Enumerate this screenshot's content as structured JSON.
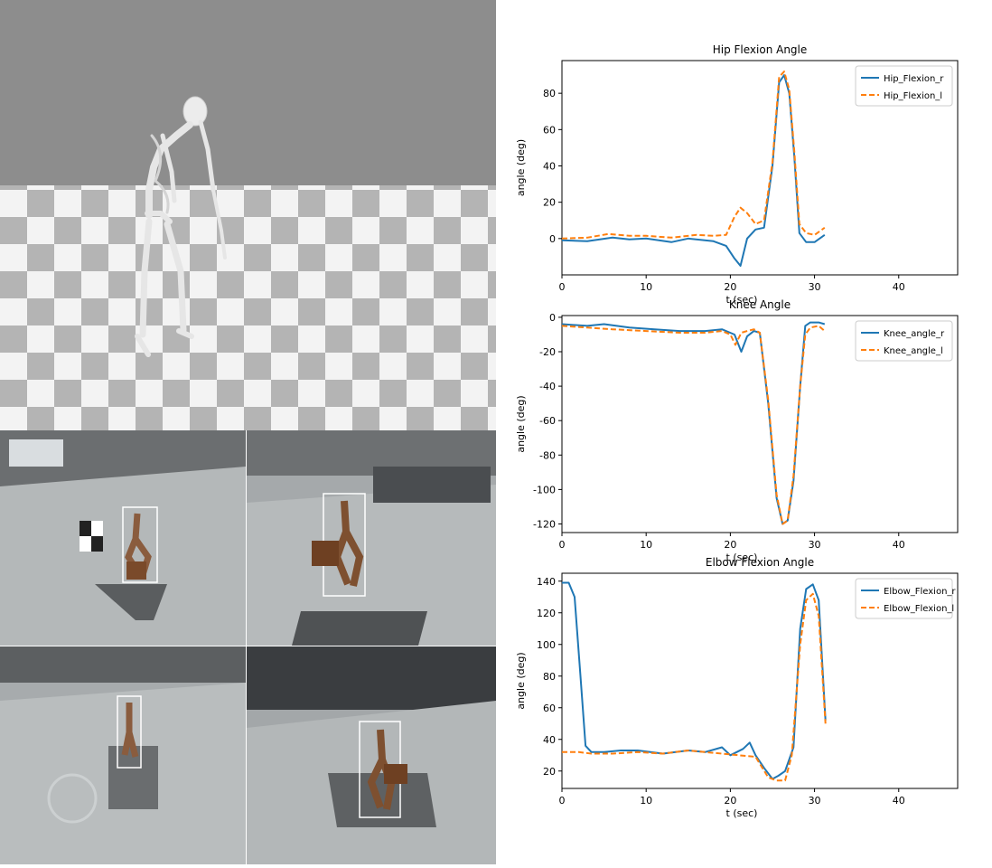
{
  "chart_data": [
    {
      "type": "line",
      "title": "Hip Flexion Angle",
      "xlabel": "t (sec)",
      "ylabel": "angle (deg)",
      "xlim": [
        0,
        47
      ],
      "ylim": [
        -20,
        98
      ],
      "xticks": [
        0,
        10,
        20,
        30,
        40
      ],
      "yticks": [
        0,
        20,
        40,
        60,
        80
      ],
      "legend": "top-right",
      "series": [
        {
          "name": "Hip_Flexion_r",
          "color": "#1f77b4",
          "dash": false,
          "x": [
            0,
            3,
            6,
            8,
            10,
            13,
            15,
            18,
            19.5,
            20.5,
            21.2,
            22,
            23,
            24,
            25,
            25.8,
            26.4,
            27,
            27.6,
            28.2,
            29,
            30,
            31.2
          ],
          "y": [
            -1,
            -1.5,
            0.5,
            -0.5,
            0,
            -2,
            0,
            -1.5,
            -4,
            -11,
            -15,
            0,
            5,
            6,
            40,
            86,
            90,
            80,
            45,
            3,
            -2,
            -2,
            2
          ]
        },
        {
          "name": "Hip_Flexion_l",
          "color": "#ff7f0e",
          "dash": true,
          "x": [
            0,
            3,
            5.5,
            8,
            10,
            13,
            16,
            18,
            19.5,
            20.5,
            21.2,
            22,
            23,
            24,
            25,
            25.8,
            26.4,
            27,
            27.6,
            28.2,
            29,
            30,
            31.2
          ],
          "y": [
            0,
            0.5,
            2.5,
            1.5,
            1.5,
            0.5,
            2,
            1.5,
            2,
            12,
            17,
            14,
            8,
            10,
            42,
            89,
            92,
            82,
            48,
            8,
            3,
            2,
            6
          ]
        }
      ]
    },
    {
      "type": "line",
      "title": "Knee Angle",
      "xlabel": "t (sec)",
      "ylabel": "angle (deg)",
      "xlim": [
        0,
        47
      ],
      "ylim": [
        -125,
        1
      ],
      "xticks": [
        0,
        10,
        20,
        30,
        40
      ],
      "yticks": [
        0,
        -20,
        -40,
        -60,
        -80,
        -100,
        -120
      ],
      "legend": "top-right",
      "series": [
        {
          "name": "Knee_angle_r",
          "color": "#1f77b4",
          "dash": false,
          "x": [
            0,
            3,
            5,
            8,
            11,
            14,
            17,
            19,
            20.5,
            21.3,
            22,
            22.8,
            23.5,
            24.5,
            25.5,
            26.2,
            26.8,
            27.5,
            28.3,
            28.9,
            29.5,
            30.5,
            31.2
          ],
          "y": [
            -4,
            -5,
            -4,
            -6,
            -7,
            -8,
            -8,
            -7,
            -10,
            -20,
            -11,
            -8,
            -9,
            -50,
            -105,
            -120,
            -118,
            -95,
            -40,
            -5,
            -3,
            -3,
            -4
          ]
        },
        {
          "name": "Knee_angle_l",
          "color": "#ff7f0e",
          "dash": true,
          "x": [
            0,
            3,
            6,
            10,
            14,
            17,
            19,
            20,
            20.6,
            21.3,
            22,
            22.8,
            23.5,
            24.5,
            25.5,
            26.2,
            26.8,
            27.5,
            28.3,
            28.9,
            29.5,
            30.5,
            31.2
          ],
          "y": [
            -5,
            -6,
            -7,
            -8,
            -9,
            -9,
            -8,
            -10,
            -16,
            -9,
            -8,
            -7,
            -9,
            -48,
            -103,
            -120,
            -118,
            -92,
            -40,
            -10,
            -6,
            -5,
            -8
          ]
        }
      ]
    },
    {
      "type": "line",
      "title": "Elbow Flexion Angle",
      "xlabel": "t (sec)",
      "ylabel": "angle (deg)",
      "xlim": [
        0,
        47
      ],
      "ylim": [
        9,
        145
      ],
      "xticks": [
        0,
        10,
        20,
        30,
        40
      ],
      "yticks": [
        20,
        40,
        60,
        80,
        100,
        120,
        140
      ],
      "legend": "top-right",
      "series": [
        {
          "name": "Elbow_Flexion_r",
          "color": "#1f77b4",
          "dash": false,
          "x": [
            0,
            0.8,
            1.5,
            2.2,
            2.8,
            3.5,
            5,
            7,
            9,
            12,
            15,
            17,
            19,
            20,
            21.5,
            22.3,
            23,
            24,
            25,
            25.7,
            26.5,
            27.5,
            28.3,
            29,
            29.8,
            30.5,
            31.3
          ],
          "y": [
            139,
            139,
            130,
            80,
            36,
            32,
            32,
            33,
            33,
            31,
            33,
            32,
            35,
            30,
            34,
            38,
            30,
            22,
            15,
            17,
            20,
            35,
            110,
            135,
            138,
            128,
            52
          ]
        },
        {
          "name": "Elbow_Flexion_l",
          "color": "#ff7f0e",
          "dash": true,
          "x": [
            0,
            2,
            3.5,
            6,
            9,
            12,
            15,
            17,
            19,
            21,
            23,
            24.5,
            25.5,
            26.5,
            27.3,
            28.3,
            29,
            29.8,
            30.5,
            31.3
          ],
          "y": [
            32,
            32,
            31,
            31,
            32,
            31,
            33,
            32,
            31,
            30,
            29,
            16,
            14,
            14,
            30,
            100,
            128,
            132,
            118,
            50
          ]
        }
      ]
    }
  ]
}
